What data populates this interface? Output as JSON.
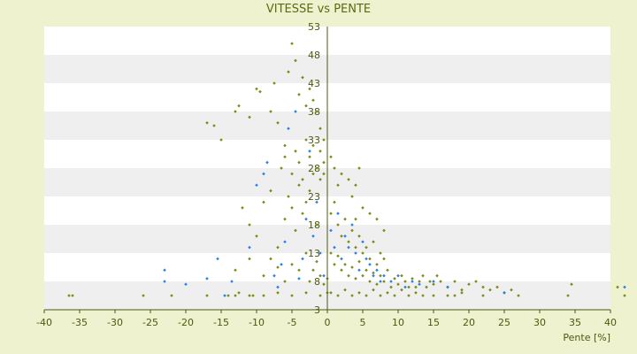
{
  "chart_data": {
    "type": "scatter",
    "title": "VITESSE vs PENTE",
    "xlabel": "Pente [%]",
    "ylabel": "",
    "xlim": [
      -40,
      40
    ],
    "ylim": [
      3,
      53
    ],
    "x_ticks": [
      "-40",
      "-35",
      "-30",
      "-25",
      "-20",
      "-15",
      "-10",
      "-5",
      "0",
      "5",
      "10",
      "15",
      "20",
      "25",
      "30",
      "35",
      "40"
    ],
    "y_ticks": [
      "3",
      "8",
      "13",
      "18",
      "23",
      "28",
      "33",
      "38",
      "43",
      "48",
      "53"
    ],
    "grid": "horizontal bands",
    "legend": "none",
    "colors": {
      "background": "#eef2cf",
      "band_light": "#ffffff",
      "band_dark": "#efefef",
      "axis": "#4a5a10",
      "series_a": "#7a8c18",
      "series_b": "#2a7fe8"
    },
    "series": [
      {
        "marker": "diamond",
        "color": "#7a8c18",
        "points": [
          [
            -36.5,
            5.5
          ],
          [
            -36,
            5.5
          ],
          [
            -26,
            5.5
          ],
          [
            -22,
            5.5
          ],
          [
            -17,
            5.5
          ],
          [
            -14,
            5.5
          ],
          [
            -13,
            5.5
          ],
          [
            -12.5,
            6
          ],
          [
            -11,
            5.5
          ],
          [
            -10.5,
            5.5
          ],
          [
            -9,
            5.5
          ],
          [
            -7,
            6
          ],
          [
            -5,
            5.5
          ],
          [
            -3,
            6
          ],
          [
            -1,
            5.5
          ],
          [
            0,
            6
          ],
          [
            -13,
            10
          ],
          [
            -11,
            12
          ],
          [
            -9,
            9
          ],
          [
            -8,
            12
          ],
          [
            -7,
            10.5
          ],
          [
            -6,
            8
          ],
          [
            -5,
            11
          ],
          [
            -4,
            10
          ],
          [
            -3,
            13
          ],
          [
            -2.5,
            8
          ],
          [
            -2,
            10
          ],
          [
            -1.5,
            11.5
          ],
          [
            -1,
            9
          ],
          [
            -0.5,
            7.5
          ],
          [
            0,
            8.5
          ],
          [
            -12,
            21
          ],
          [
            -11,
            18
          ],
          [
            -10,
            16
          ],
          [
            -9,
            22
          ],
          [
            -8,
            24
          ],
          [
            -7,
            14
          ],
          [
            -6,
            19
          ],
          [
            -5.5,
            23
          ],
          [
            -5,
            21
          ],
          [
            -4.5,
            17
          ],
          [
            -4,
            25
          ],
          [
            -3.5,
            20
          ],
          [
            -3,
            22
          ],
          [
            -2.5,
            24
          ],
          [
            -2,
            27
          ],
          [
            -1.5,
            18
          ],
          [
            -1,
            26
          ],
          [
            -0.5,
            29
          ],
          [
            -17,
            36
          ],
          [
            -16,
            35.5
          ],
          [
            -15,
            33
          ],
          [
            -13,
            38
          ],
          [
            -12.5,
            39
          ],
          [
            -11,
            37
          ],
          [
            -10,
            42
          ],
          [
            -9.5,
            41.5
          ],
          [
            -8,
            38
          ],
          [
            -7.5,
            43
          ],
          [
            -7,
            36
          ],
          [
            -6,
            32
          ],
          [
            -5.5,
            45
          ],
          [
            -5,
            50
          ],
          [
            -4.5,
            47
          ],
          [
            -4,
            41
          ],
          [
            -3.5,
            44
          ],
          [
            -3,
            39
          ],
          [
            -2.5,
            42
          ],
          [
            -2,
            40
          ],
          [
            -1.5,
            38
          ],
          [
            -1,
            35
          ],
          [
            -0.5,
            33
          ],
          [
            -6.5,
            28
          ],
          [
            -6,
            30
          ],
          [
            -5,
            27
          ],
          [
            -4.5,
            31
          ],
          [
            -4,
            29
          ],
          [
            -3.5,
            26
          ],
          [
            -3,
            33
          ],
          [
            -2.5,
            30
          ],
          [
            -2,
            32
          ],
          [
            -1.5,
            28
          ],
          [
            -1,
            31
          ],
          [
            -0.5,
            27
          ],
          [
            0.5,
            30
          ],
          [
            1,
            28
          ],
          [
            1.5,
            25
          ],
          [
            2,
            27
          ],
          [
            3,
            26
          ],
          [
            3.5,
            23
          ],
          [
            4,
            25
          ],
          [
            4.5,
            28
          ],
          [
            5,
            21
          ],
          [
            6,
            20
          ],
          [
            7,
            19
          ],
          [
            8,
            17
          ],
          [
            4,
            19
          ],
          [
            0.5,
            20
          ],
          [
            1,
            22
          ],
          [
            1.5,
            18
          ],
          [
            2,
            16
          ],
          [
            2.5,
            19
          ],
          [
            3,
            15
          ],
          [
            3.5,
            17
          ],
          [
            4,
            14
          ],
          [
            4.5,
            16
          ],
          [
            5,
            13
          ],
          [
            5.5,
            14
          ],
          [
            6,
            12
          ],
          [
            6.5,
            15
          ],
          [
            7,
            11
          ],
          [
            7.5,
            13
          ],
          [
            8,
            12
          ],
          [
            0.5,
            13
          ],
          [
            1,
            11
          ],
          [
            1.5,
            12.5
          ],
          [
            2,
            10
          ],
          [
            2.5,
            11
          ],
          [
            3,
            9
          ],
          [
            3.5,
            10.5
          ],
          [
            4,
            8.5
          ],
          [
            4.5,
            11.5
          ],
          [
            5,
            9
          ],
          [
            5.5,
            10
          ],
          [
            6,
            8
          ],
          [
            6.5,
            9.5
          ],
          [
            7,
            7.5
          ],
          [
            7.5,
            9
          ],
          [
            8,
            8
          ],
          [
            8.5,
            10
          ],
          [
            9,
            7
          ],
          [
            9.5,
            8.5
          ],
          [
            10,
            7.5
          ],
          [
            10.5,
            9
          ],
          [
            11,
            8
          ],
          [
            11.5,
            7
          ],
          [
            12,
            8.5
          ],
          [
            12.5,
            7
          ],
          [
            13,
            8
          ],
          [
            13.5,
            9
          ],
          [
            14,
            7
          ],
          [
            14.5,
            8
          ],
          [
            15,
            7.5
          ],
          [
            15.5,
            9
          ],
          [
            16,
            8
          ],
          [
            17,
            7
          ],
          [
            18,
            8
          ],
          [
            19,
            6.5
          ],
          [
            20,
            7.5
          ],
          [
            21,
            8
          ],
          [
            22,
            7
          ],
          [
            23,
            6.5
          ],
          [
            24,
            7
          ],
          [
            25,
            6
          ],
          [
            26,
            6.5
          ],
          [
            0.5,
            6
          ],
          [
            1.5,
            5.5
          ],
          [
            2.5,
            6.5
          ],
          [
            3.5,
            5.5
          ],
          [
            4.5,
            6
          ],
          [
            5.5,
            5.5
          ],
          [
            6.5,
            6.5
          ],
          [
            7.5,
            5.5
          ],
          [
            8.5,
            6
          ],
          [
            9.5,
            5.5
          ],
          [
            10.5,
            6.5
          ],
          [
            11.5,
            5.5
          ],
          [
            12.5,
            6
          ],
          [
            13.5,
            5.5
          ],
          [
            15,
            5.5
          ],
          [
            17,
            5.5
          ],
          [
            18,
            5.5
          ],
          [
            19,
            6
          ],
          [
            22,
            5.5
          ],
          [
            27,
            5.5
          ],
          [
            34,
            5.5
          ],
          [
            42,
            5.5
          ],
          [
            34.5,
            7.5
          ],
          [
            41,
            7
          ]
        ]
      },
      {
        "marker": "diamond",
        "color": "#2a7fe8",
        "points": [
          [
            -23,
            8
          ],
          [
            -23,
            10
          ],
          [
            -20,
            7.5
          ],
          [
            -17,
            8.5
          ],
          [
            -15.5,
            12
          ],
          [
            -14.5,
            5.5
          ],
          [
            -13.5,
            8
          ],
          [
            -11,
            14
          ],
          [
            -10,
            25
          ],
          [
            -9,
            27
          ],
          [
            -8.5,
            29
          ],
          [
            -7.5,
            9
          ],
          [
            -7,
            7
          ],
          [
            -6.5,
            11
          ],
          [
            -6,
            15
          ],
          [
            -5.5,
            35
          ],
          [
            -4.5,
            38
          ],
          [
            -4,
            8.5
          ],
          [
            -3.5,
            12
          ],
          [
            -3,
            19
          ],
          [
            -2.5,
            31
          ],
          [
            -2,
            16
          ],
          [
            -1.5,
            22
          ],
          [
            -1,
            13
          ],
          [
            -0.5,
            9
          ],
          [
            0.5,
            17
          ],
          [
            1,
            14
          ],
          [
            1.5,
            20
          ],
          [
            2,
            12
          ],
          [
            2.5,
            16
          ],
          [
            3,
            14
          ],
          [
            3.5,
            18
          ],
          [
            4,
            13
          ],
          [
            4.5,
            10
          ],
          [
            5,
            15
          ],
          [
            5.5,
            12
          ],
          [
            6,
            11
          ],
          [
            6.5,
            9
          ],
          [
            7,
            10
          ],
          [
            7.5,
            8
          ],
          [
            8,
            9
          ],
          [
            9,
            8
          ],
          [
            10,
            9
          ],
          [
            11,
            7
          ],
          [
            12,
            8
          ],
          [
            13,
            7.5
          ],
          [
            15,
            8
          ],
          [
            17,
            7
          ],
          [
            25,
            6
          ],
          [
            42,
            7
          ]
        ]
      }
    ]
  }
}
